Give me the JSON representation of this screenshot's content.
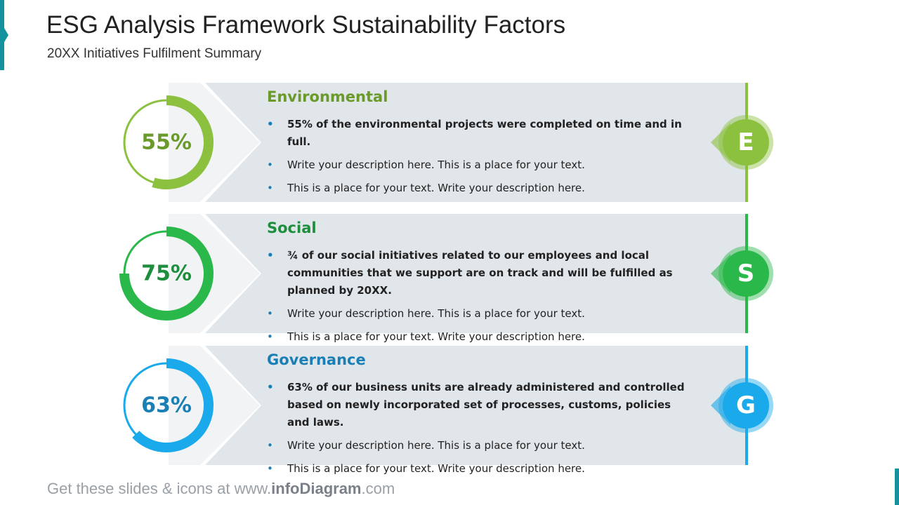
{
  "header": {
    "title": "ESG Analysis Framework Sustainability Factors",
    "subtitle": "20XX Initiatives Fulfilment Summary"
  },
  "rows": [
    {
      "percent": 55,
      "percent_label": "55%",
      "title": "Environmental",
      "letter": "E",
      "color": "#8cc13f",
      "title_color": "#6a9a2a",
      "bullets": [
        "55% of the environmental projects were completed on time and in full.",
        "Write your description here. This is a place for your text.",
        "This is a place for your text. Write your description here."
      ]
    },
    {
      "percent": 75,
      "percent_label": "75%",
      "title": "Social",
      "letter": "S",
      "color": "#2bb84a",
      "title_color": "#1e8e3e",
      "bullets": [
        "¾ of our social initiatives related to our employees and local communities that we support are on track and will be fulfilled as planned by 20XX.",
        "Write your description here. This is a place for your text.",
        "This is a place for your text. Write your description here."
      ]
    },
    {
      "percent": 63,
      "percent_label": "63%",
      "title": "Governance",
      "letter": "G",
      "color": "#1aa9ea",
      "title_color": "#1a7fb5",
      "bullets": [
        "63% of our business units are already administered and controlled based on newly incorporated set of processes, customs, policies and laws.",
        "Write your description here. This is a place for your text.",
        "This is a place for your text. Write your description here."
      ]
    }
  ],
  "footer": {
    "prefix": "Get these slides & icons at www.",
    "brand": "infoDiagram",
    "suffix": ".com"
  }
}
